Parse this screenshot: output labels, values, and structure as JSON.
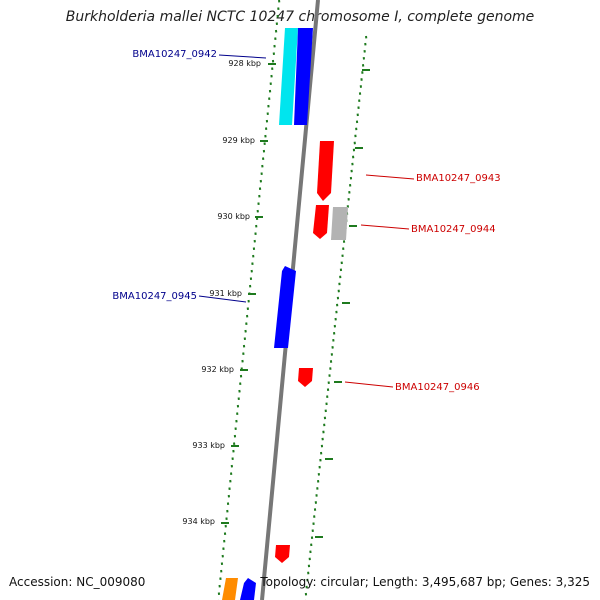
{
  "title": "Burkholderia mallei NCTC 10247 chromosome I, complete genome",
  "footer": {
    "accession": "Accession: NC_009080",
    "summary": "Topology: circular; Length: 3,495,687 bp; Genes: 3,325"
  },
  "colors": {
    "forward_cds": "#0000ff",
    "reverse_cds": "#ff0000",
    "forward_cds_alt": "#00e5ee",
    "reverse_cds_alt": "#b3b3b3",
    "other_feature": "#ff8c00",
    "backbone": "#777777",
    "tick": "#1e7a1e",
    "label_forward": "#00008b",
    "label_reverse": "#cc0000"
  },
  "ruler": [
    {
      "label": "928 kbp"
    },
    {
      "label": "929 kbp"
    },
    {
      "label": "930 kbp"
    },
    {
      "label": "931 kbp"
    },
    {
      "label": "932 kbp"
    },
    {
      "label": "933 kbp"
    },
    {
      "label": "934 kbp"
    }
  ],
  "gene_labels": [
    {
      "id": "BMA10247_0942",
      "strand": "forward"
    },
    {
      "id": "BMA10247_0943",
      "strand": "reverse"
    },
    {
      "id": "BMA10247_0944",
      "strand": "reverse"
    },
    {
      "id": "BMA10247_0945",
      "strand": "forward"
    },
    {
      "id": "BMA10247_0946",
      "strand": "reverse"
    }
  ]
}
